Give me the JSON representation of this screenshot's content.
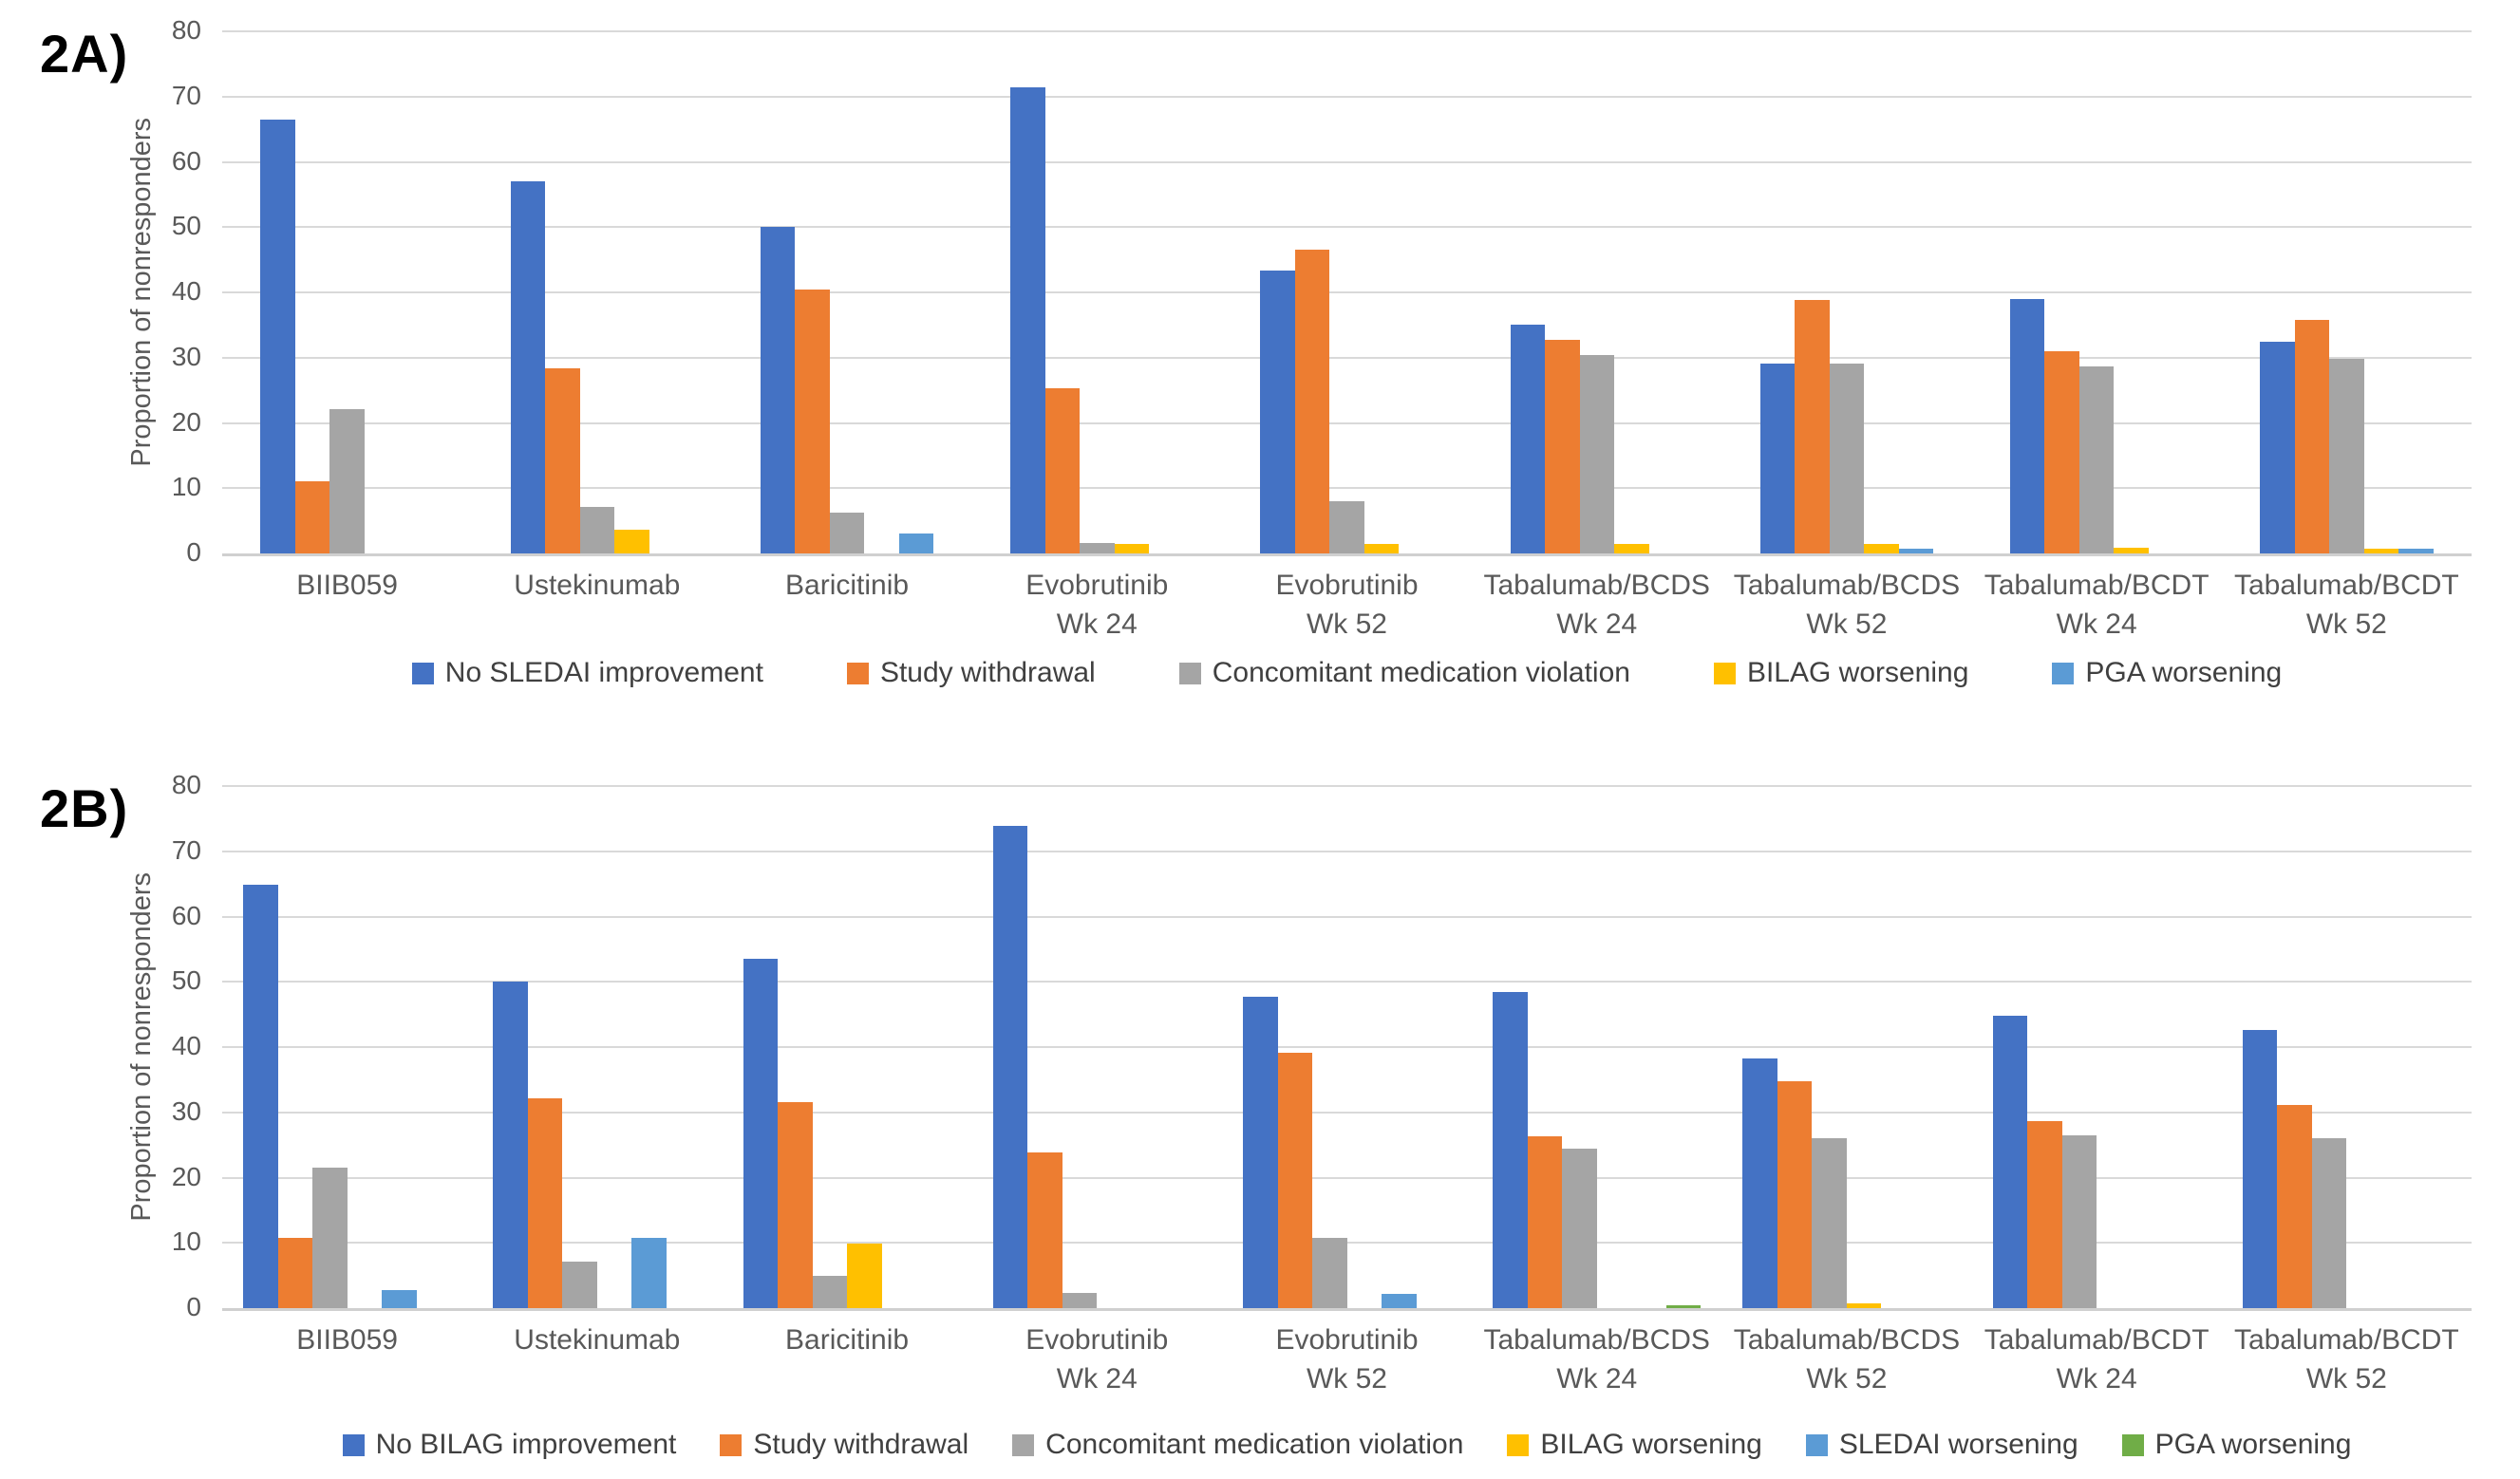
{
  "figure": {
    "panel_count": 2,
    "background": "#ffffff",
    "text_color_axis": "#595959",
    "text_color_legend": "#404040",
    "gridline_color": "#d9d9d9"
  },
  "chart_data": [
    {
      "type": "bar",
      "panel_label": "2A)",
      "title": "",
      "xlabel": "",
      "ylabel": "Proportion of nonresponders",
      "ylim": [
        0,
        80
      ],
      "ytick_step": 10,
      "ytick_labels": [
        "0",
        "10",
        "20",
        "30",
        "40",
        "50",
        "60",
        "70",
        "80"
      ],
      "grid": true,
      "legend_position": "bottom",
      "categories": [
        "BIIB059",
        "Ustekinumab",
        "Baricitinib",
        "Evobrutinib\nWk 24",
        "Evobrutinib\nWk 52",
        "Tabalumab/BCDS\nWk 24",
        "Tabalumab/BCDS\nWk 52",
        "Tabalumab/BCDT\nWk 24",
        "Tabalumab/BCDT\nWk 52"
      ],
      "series": [
        {
          "name": "No SLEDAI improvement",
          "color": "#4472C4",
          "values": [
            66.5,
            57.0,
            50.0,
            71.4,
            43.3,
            35.1,
            29.1,
            39.0,
            32.5
          ]
        },
        {
          "name": "Study withdrawal",
          "color": "#ED7D31",
          "values": [
            11.0,
            28.4,
            40.5,
            25.3,
            46.6,
            32.7,
            38.8,
            31.0,
            35.8
          ]
        },
        {
          "name": "Concomitant medication violation",
          "color": "#A5A5A5",
          "values": [
            22.1,
            7.1,
            6.2,
            1.6,
            8.0,
            30.4,
            29.1,
            28.6,
            29.8
          ]
        },
        {
          "name": "BILAG worsening",
          "color": "#FFC000",
          "values": [
            0,
            3.7,
            0,
            1.5,
            1.4,
            1.5,
            1.4,
            0.9,
            0.8
          ]
        },
        {
          "name": "PGA worsening",
          "color": "#5B9BD5",
          "values": [
            0,
            0,
            3.0,
            0,
            0,
            0,
            0.8,
            0,
            0.8
          ]
        }
      ]
    },
    {
      "type": "bar",
      "panel_label": "2B)",
      "title": "",
      "xlabel": "",
      "ylabel": "Proportion of nonresponders",
      "ylim": [
        0,
        80
      ],
      "ytick_step": 10,
      "ytick_labels": [
        "0",
        "10",
        "20",
        "30",
        "40",
        "50",
        "60",
        "70",
        "80"
      ],
      "grid": true,
      "legend_position": "bottom",
      "categories": [
        "BIIB059",
        "Ustekinumab",
        "Baricitinib",
        "Evobrutinib\nWk 24",
        "Evobrutinib\nWk 52",
        "Tabalumab/BCDS\nWk 24",
        "Tabalumab/BCDS\nWk 52",
        "Tabalumab/BCDT\nWk 24",
        "Tabalumab/BCDT\nWk 52"
      ],
      "series": [
        {
          "name": "No BILAG improvement",
          "color": "#4472C4",
          "values": [
            64.9,
            50.0,
            53.5,
            73.9,
            47.7,
            48.4,
            38.3,
            44.8,
            42.6
          ]
        },
        {
          "name": "Study withdrawal",
          "color": "#ED7D31",
          "values": [
            10.7,
            32.1,
            31.6,
            23.8,
            39.1,
            26.4,
            34.8,
            28.6,
            31.1
          ]
        },
        {
          "name": "Concomitant medication violation",
          "color": "#A5A5A5",
          "values": [
            21.5,
            7.1,
            4.9,
            2.3,
            10.8,
            24.5,
            26.1,
            26.5,
            26.1
          ]
        },
        {
          "name": "BILAG worsening",
          "color": "#FFC000",
          "values": [
            0,
            0,
            9.9,
            0,
            0,
            0,
            0.7,
            0,
            0
          ]
        },
        {
          "name": "SLEDAI worsening",
          "color": "#5B9BD5",
          "values": [
            2.7,
            10.7,
            0,
            0,
            2.2,
            0,
            0,
            0,
            0
          ]
        },
        {
          "name": "PGA worsening",
          "color": "#70AD47",
          "values": [
            0,
            0,
            0,
            0,
            0,
            0.5,
            0,
            0,
            0
          ]
        }
      ]
    }
  ]
}
